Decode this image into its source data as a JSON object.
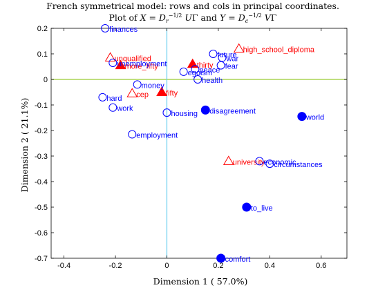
{
  "colors": {
    "rows": "#ff0000",
    "cols": "#0000ff",
    "hline": "#99cc33",
    "vline": "#66ccee"
  },
  "chart_data": {
    "type": "scatter",
    "title_line1": "French symmetrical model: rows and cols in principal coordinates.",
    "title_line2": "Plot of X = D_r^{-1/2} U Γ and Y = D_c^{-1/2} V Γ",
    "xlabel": "Dimension  1 ( 57.0%)",
    "ylabel": "Dimension  2 ( 21.1%)",
    "xlim": [
      -0.45,
      0.7
    ],
    "ylim": [
      -0.7,
      0.2
    ],
    "xticks": [
      "-0.4",
      "-0.2",
      "0",
      "0.2",
      "0.4",
      "0.6"
    ],
    "xtick_values": [
      -0.4,
      -0.2,
      0,
      0.2,
      0.4,
      0.6
    ],
    "yticks": [
      "0.2",
      "0.1",
      "0",
      "-0.1",
      "-0.2",
      "-0.3",
      "-0.4",
      "-0.5",
      "-0.6",
      "-0.7"
    ],
    "ytick_values": [
      0.2,
      0.1,
      0,
      -0.1,
      -0.2,
      -0.3,
      -0.4,
      -0.5,
      -0.6,
      -0.7
    ],
    "series": [
      {
        "role": "rows",
        "points": [
          {
            "label": "unqualified",
            "x": -0.22,
            "y": 0.085,
            "filled": false
          },
          {
            "label": "more_fifty",
            "x": -0.18,
            "y": 0.055,
            "filled": true
          },
          {
            "label": "cep",
            "x": -0.135,
            "y": -0.055,
            "filled": false
          },
          {
            "label": "fifty",
            "x": -0.02,
            "y": -0.05,
            "filled": true
          },
          {
            "label": "thirty",
            "x": 0.1,
            "y": 0.06,
            "filled": true
          },
          {
            "label": "high_school_diploma",
            "x": 0.28,
            "y": 0.12,
            "filled": false
          },
          {
            "label": "university",
            "x": 0.24,
            "y": -0.32,
            "filled": false
          }
        ]
      },
      {
        "role": "cols",
        "points": [
          {
            "label": "finances",
            "x": -0.24,
            "y": 0.2,
            "filled": false
          },
          {
            "label": "unemployment",
            "x": -0.21,
            "y": 0.065,
            "filled": false
          },
          {
            "label": "money",
            "x": -0.115,
            "y": -0.02,
            "filled": false
          },
          {
            "label": "hard",
            "x": -0.25,
            "y": -0.07,
            "filled": false
          },
          {
            "label": "work",
            "x": -0.21,
            "y": -0.11,
            "filled": false
          },
          {
            "label": "housing",
            "x": 0.0,
            "y": -0.13,
            "filled": false
          },
          {
            "label": "employment",
            "x": -0.135,
            "y": -0.215,
            "filled": false
          },
          {
            "label": "egoism",
            "x": 0.065,
            "y": 0.03,
            "filled": false
          },
          {
            "label": "future",
            "x": 0.18,
            "y": 0.1,
            "filled": false
          },
          {
            "label": "war",
            "x": 0.215,
            "y": 0.085,
            "filled": false
          },
          {
            "label": "fear",
            "x": 0.21,
            "y": 0.055,
            "filled": false
          },
          {
            "label": "peace",
            "x": 0.11,
            "y": 0.04,
            "filled": false
          },
          {
            "label": "health",
            "x": 0.12,
            "y": 0.0,
            "filled": false
          },
          {
            "label": "disagreement",
            "x": 0.15,
            "y": -0.12,
            "filled": true
          },
          {
            "label": "world",
            "x": 0.525,
            "y": -0.145,
            "filled": true
          },
          {
            "label": "economic",
            "x": 0.36,
            "y": -0.32,
            "filled": false
          },
          {
            "label": "circumstances",
            "x": 0.4,
            "y": -0.33,
            "filled": false
          },
          {
            "label": "to_live",
            "x": 0.31,
            "y": -0.5,
            "filled": true
          },
          {
            "label": "comfort",
            "x": 0.21,
            "y": -0.7,
            "filled": true
          }
        ]
      }
    ]
  }
}
